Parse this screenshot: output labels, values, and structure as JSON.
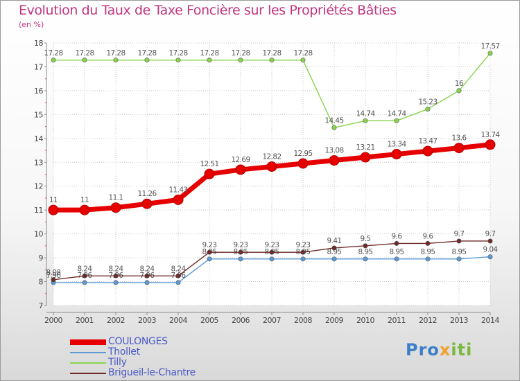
{
  "title": "Evolution du Taux de Taxe Foncière sur les Propriétés Bâties",
  "subtitle": "(en %)",
  "logo": {
    "text_1": "Pro",
    "text_2": "x",
    "text_3": "iti"
  },
  "chart_data": {
    "type": "line",
    "title": "Evolution du Taux de Taxe Foncière sur les Propriétés Bâties",
    "ylabel": "(en %)",
    "xlabel": "",
    "ylim": [
      7,
      18
    ],
    "yticks": [
      "7",
      "8",
      "9",
      "10",
      "11",
      "12",
      "13",
      "14",
      "15",
      "16",
      "17",
      "18"
    ],
    "x": [
      "2000",
      "2001",
      "2002",
      "2003",
      "2004",
      "2005",
      "2006",
      "2007",
      "2008",
      "2009",
      "2010",
      "2011",
      "2012",
      "2013",
      "2014"
    ],
    "legend_position": "bottom-left",
    "series": [
      {
        "name": "Tilly",
        "color": "#88d44e",
        "values": [
          17.28,
          17.28,
          17.28,
          17.28,
          17.28,
          17.28,
          17.28,
          17.28,
          17.28,
          14.45,
          14.74,
          14.74,
          15.23,
          16,
          17.57
        ],
        "labels": [
          "17.28",
          "17.28",
          "17.28",
          "17.28",
          "17.28",
          "17.28",
          "17.28",
          "17.28",
          "17.28",
          "14.45",
          "14.74",
          "14.74",
          "15.23",
          "16",
          "17.57"
        ]
      },
      {
        "name": "Thollet",
        "color": "#5b9bd5",
        "values": [
          7.96,
          7.96,
          7.96,
          7.96,
          7.96,
          8.95,
          8.95,
          8.95,
          8.95,
          8.95,
          8.95,
          8.95,
          8.95,
          8.95,
          9.04
        ],
        "labels": [
          "7.96",
          "7.96",
          "7.96",
          "7.96",
          "7.96",
          "8.95",
          "8.95",
          "8.95",
          "8.95",
          "8.95",
          "8.95",
          "8.95",
          "8.95",
          "8.95",
          "9.04"
        ]
      },
      {
        "name": "Brigueil-le-Chantre",
        "color": "#6e2a2a",
        "values": [
          8.08,
          8.24,
          8.24,
          8.24,
          8.24,
          9.23,
          9.23,
          9.23,
          9.23,
          9.41,
          9.5,
          9.6,
          9.6,
          9.7,
          9.7
        ],
        "labels": [
          "8.08",
          "8.24",
          "8.24",
          "8.24",
          "8.24",
          "9.23",
          "9.23",
          "9.23",
          "9.23",
          "9.41",
          "9.5",
          "9.6",
          "9.6",
          "9.7",
          "9.7"
        ]
      },
      {
        "name": "COULONGES",
        "color": "#e60000",
        "values": [
          11,
          11,
          11.1,
          11.26,
          11.43,
          12.51,
          12.69,
          12.82,
          12.95,
          13.08,
          13.21,
          13.34,
          13.47,
          13.6,
          13.74
        ],
        "labels": [
          "11",
          "11",
          "11.1",
          "11.26",
          "11.43",
          "12.51",
          "12.69",
          "12.82",
          "12.95",
          "13.08",
          "13.21",
          "13.34",
          "13.47",
          "13.6",
          "13.74"
        ]
      }
    ],
    "legend": [
      "COULONGES",
      "Thollet",
      "Tilly",
      "Brigueil-le-Chantre"
    ]
  }
}
